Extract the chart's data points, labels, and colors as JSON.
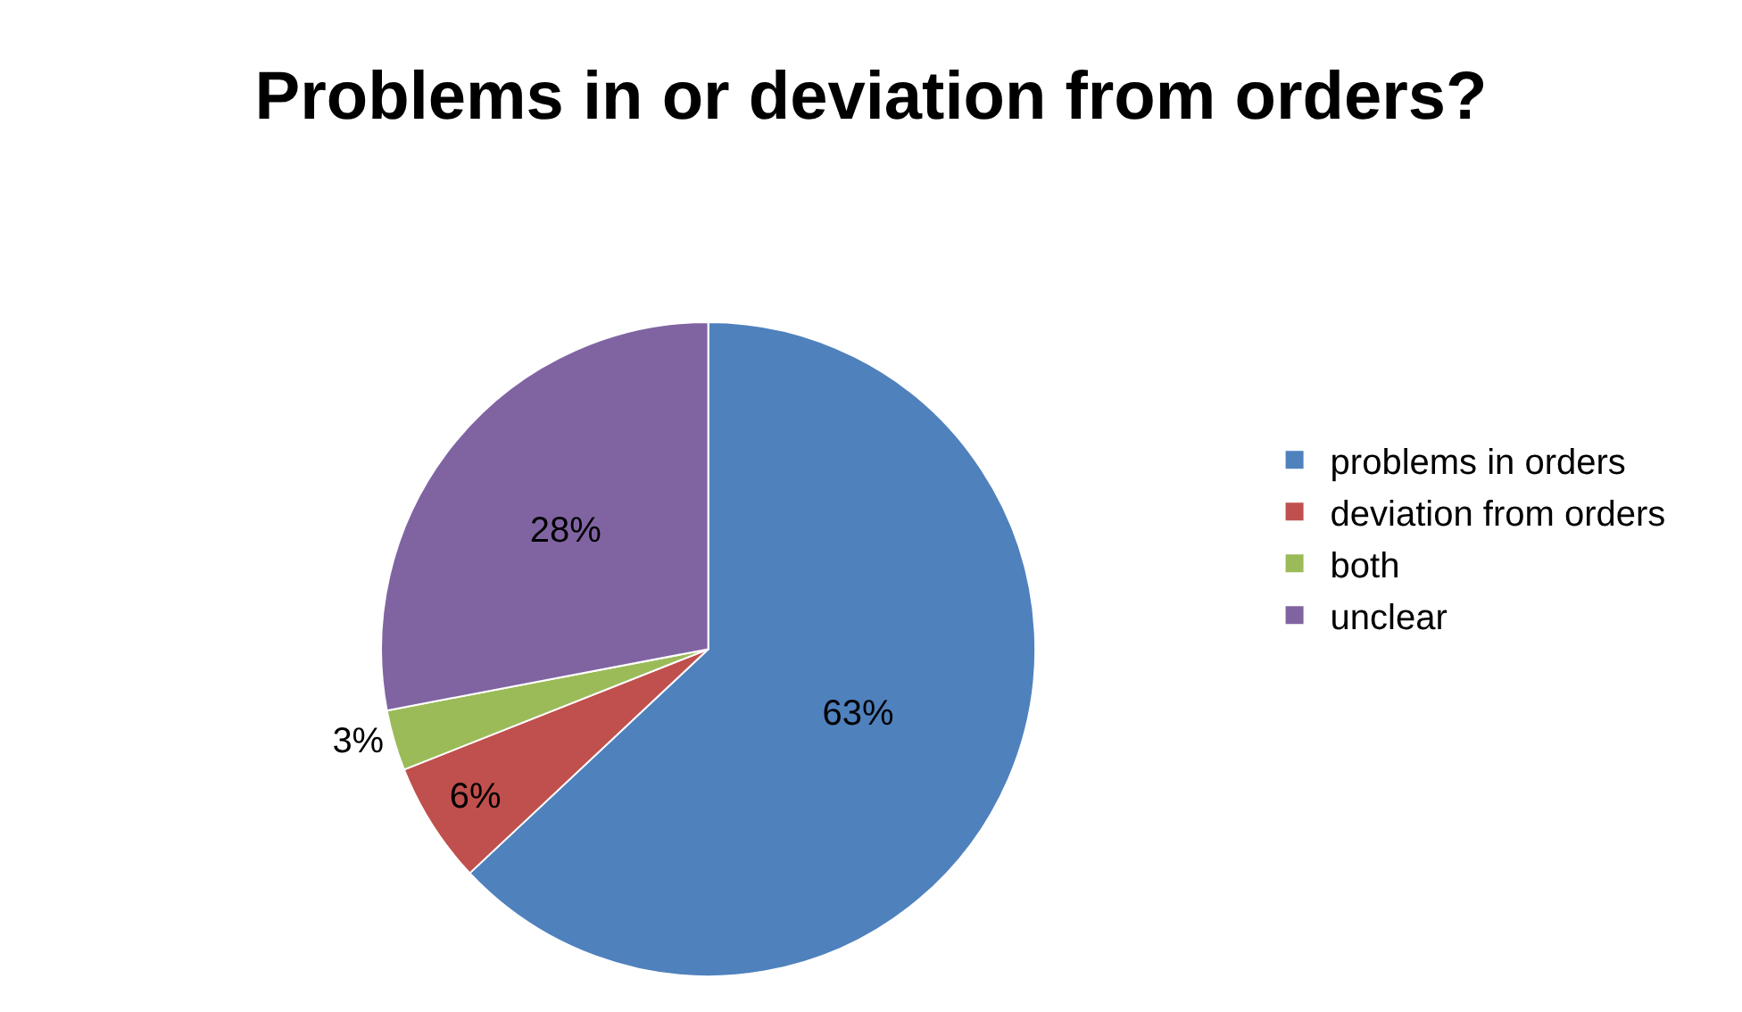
{
  "chart_data": {
    "type": "pie",
    "title": "Problems in or deviation from orders?",
    "categories": [
      "problems in orders",
      "deviation from orders",
      "both",
      "unclear"
    ],
    "values": [
      63,
      6,
      3,
      28
    ],
    "value_labels": [
      "63%",
      "6%",
      "3%",
      "28%"
    ],
    "colors": [
      "#4f81bd",
      "#c0504d",
      "#9bbb59",
      "#8064a2"
    ],
    "legend": "right"
  }
}
